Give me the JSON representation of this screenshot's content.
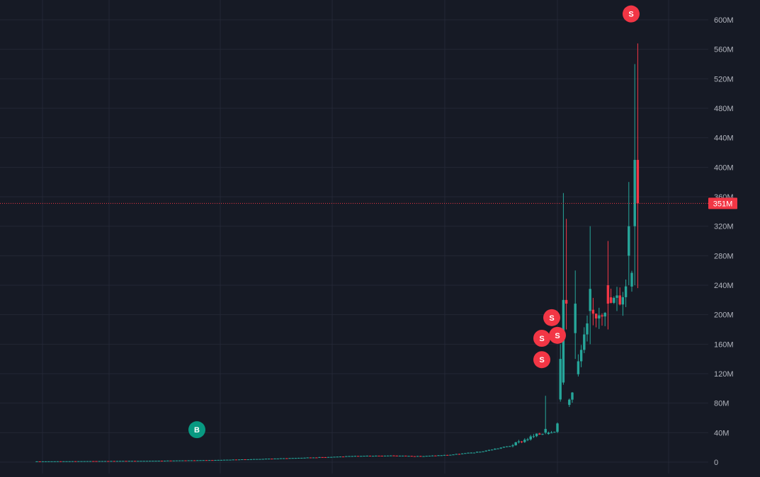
{
  "chart_data": {
    "type": "candlestick",
    "title": "",
    "xlabel": "",
    "ylabel": "",
    "ylim": [
      0,
      620000000
    ],
    "y_ticks": [
      {
        "value": 0,
        "label": "0"
      },
      {
        "value": 40000000,
        "label": "40M"
      },
      {
        "value": 80000000,
        "label": "80M"
      },
      {
        "value": 120000000,
        "label": "120M"
      },
      {
        "value": 160000000,
        "label": "160M"
      },
      {
        "value": 200000000,
        "label": "200M"
      },
      {
        "value": 240000000,
        "label": "240M"
      },
      {
        "value": 280000000,
        "label": "280M"
      },
      {
        "value": 320000000,
        "label": "320M"
      },
      {
        "value": 360000000,
        "label": "360M"
      },
      {
        "value": 400000000,
        "label": "400M"
      },
      {
        "value": 440000000,
        "label": "440M"
      },
      {
        "value": 480000000,
        "label": "480M"
      },
      {
        "value": 520000000,
        "label": "520M"
      },
      {
        "value": 560000000,
        "label": "560M"
      },
      {
        "value": 600000000,
        "label": "600M"
      }
    ],
    "last_price": {
      "value": 351000000,
      "label": "351M"
    },
    "grid": true,
    "colors": {
      "up": "#26a69a",
      "down": "#f23645",
      "grid": "#232735",
      "axis_text": "#b2b5be",
      "background": "#161a25"
    },
    "candles": [],
    "markers": [
      {
        "label": "B",
        "type": "buy",
        "index": 62,
        "price": 44000000
      },
      {
        "label": "S",
        "type": "sell",
        "index": 173,
        "price": 139000000
      },
      {
        "label": "S",
        "type": "sell",
        "index": 173,
        "price": 168000000
      },
      {
        "label": "S",
        "type": "sell",
        "index": 176,
        "price": 196000000
      },
      {
        "label": "S",
        "type": "sell",
        "index": 178,
        "price": 172000000
      },
      {
        "label": "S",
        "type": "sell",
        "index": 202,
        "price": 608000000
      }
    ]
  }
}
